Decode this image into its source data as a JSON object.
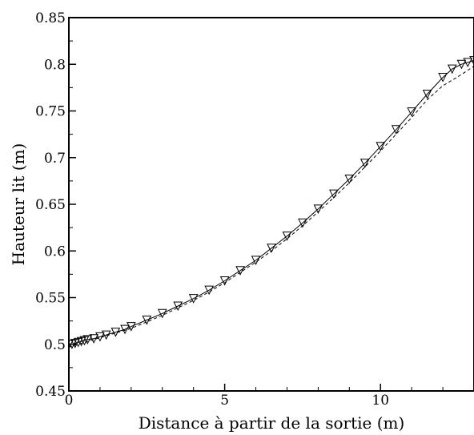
{
  "chart_data": {
    "type": "line",
    "xlabel": "Distance à partir de la sortie (m)",
    "ylabel": "Hauteur lit (m)",
    "xlim": [
      0,
      13
    ],
    "ylim": [
      0.45,
      0.85
    ],
    "x_ticks": [
      0,
      5,
      10
    ],
    "x_tick_labels": [
      "0",
      "5",
      "10"
    ],
    "y_ticks": [
      0.45,
      0.5,
      0.55,
      0.6,
      0.65,
      0.7,
      0.75,
      0.8,
      0.85
    ],
    "y_tick_labels": [
      "0.45",
      "0.5",
      "0.55",
      "0.6",
      "0.65",
      "0.7",
      "0.75",
      "0.8",
      "0.85"
    ],
    "grid": false,
    "legend": "none",
    "series": [
      {
        "marker": "triangle-down",
        "line": "solid",
        "x": [
          0,
          0.1,
          0.2,
          0.3,
          0.4,
          0.5,
          0.6,
          0.8,
          1.0,
          1.2,
          1.5,
          1.8,
          2.0,
          2.5,
          3.0,
          3.5,
          4.0,
          4.5,
          5.0,
          5.5,
          6.0,
          6.5,
          7.0,
          7.5,
          8.0,
          8.5,
          9.0,
          9.5,
          10.0,
          10.5,
          11.0,
          11.5,
          12.0,
          12.3,
          12.6,
          12.8,
          13.0
        ],
        "y": [
          0.5,
          0.5,
          0.501,
          0.502,
          0.503,
          0.504,
          0.505,
          0.506,
          0.508,
          0.51,
          0.513,
          0.516,
          0.519,
          0.526,
          0.533,
          0.541,
          0.549,
          0.558,
          0.568,
          0.579,
          0.59,
          0.603,
          0.616,
          0.63,
          0.645,
          0.661,
          0.677,
          0.694,
          0.712,
          0.73,
          0.749,
          0.768,
          0.786,
          0.795,
          0.8,
          0.802,
          0.804
        ]
      },
      {
        "marker": "none",
        "line": "dashed",
        "x": [
          0,
          0.5,
          1.0,
          1.5,
          2.0,
          2.5,
          3.0,
          3.5,
          4.0,
          4.5,
          5.0,
          5.5,
          6.0,
          6.5,
          7.0,
          7.5,
          8.0,
          8.5,
          9.0,
          9.5,
          10.0,
          10.5,
          11.0,
          11.5,
          12.0,
          12.5,
          13.0
        ],
        "y": [
          0.497,
          0.502,
          0.507,
          0.512,
          0.517,
          0.524,
          0.531,
          0.539,
          0.547,
          0.556,
          0.566,
          0.577,
          0.588,
          0.6,
          0.613,
          0.627,
          0.642,
          0.657,
          0.673,
          0.69,
          0.707,
          0.725,
          0.743,
          0.762,
          0.777,
          0.787,
          0.798
        ]
      }
    ]
  }
}
